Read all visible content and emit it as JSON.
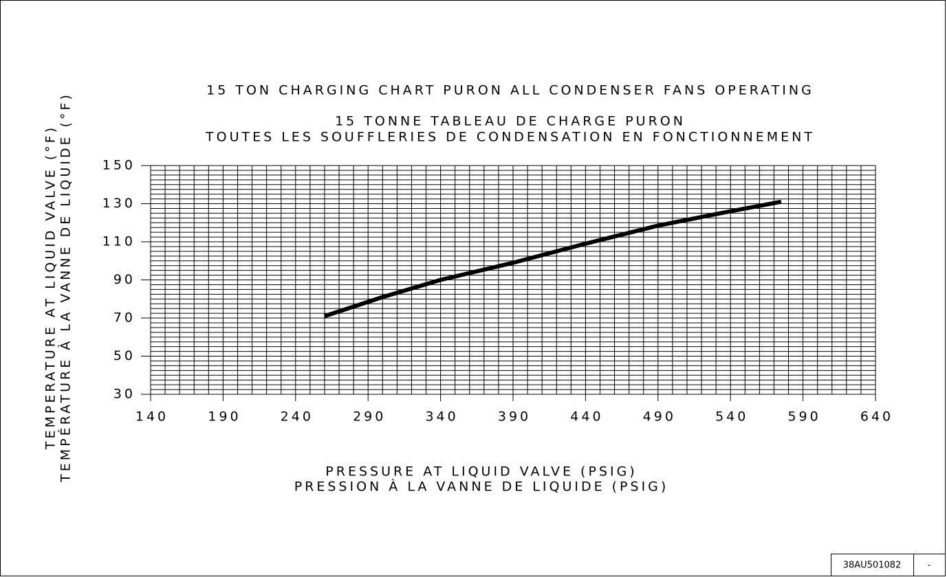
{
  "chart_data": {
    "type": "line",
    "title": "15 TON CHARGING CHART PURON ALL CONDENSER FANS OPERATING",
    "subtitle": [
      "15 TONNE TABLEAU DE CHARGE PURON",
      "TOUTES LES SOUFFLERIES DE CONDENSATION EN FONCTIONNEMENT"
    ],
    "x_label": [
      "PRESSURE AT LIQUID VALVE (PSIG)",
      "PRESSION À LA VANNE DE LIQUIDE (PSIG)"
    ],
    "y_label": [
      "TEMPERATURE AT LIQUID VALVE (°F)",
      "TEMPÉRATURE À LA VANNE DE LIQUIDE (°F)"
    ],
    "x": [
      260,
      280,
      300,
      320,
      340,
      390,
      440,
      490,
      540,
      575
    ],
    "series": [
      {
        "color": "#000000",
        "values": [
          71,
          76,
          81,
          85.5,
          90,
          99,
          109,
          118.5,
          126,
          131
        ]
      }
    ],
    "xlim": [
      140,
      640
    ],
    "xticks": [
      140,
      190,
      240,
      290,
      340,
      390,
      440,
      490,
      540,
      590,
      640
    ],
    "ylim": [
      30,
      150
    ],
    "yticks": [
      30,
      50,
      70,
      90,
      110,
      130,
      150
    ],
    "grid": true,
    "drawing_number": "38AU501082",
    "revision": "-"
  }
}
